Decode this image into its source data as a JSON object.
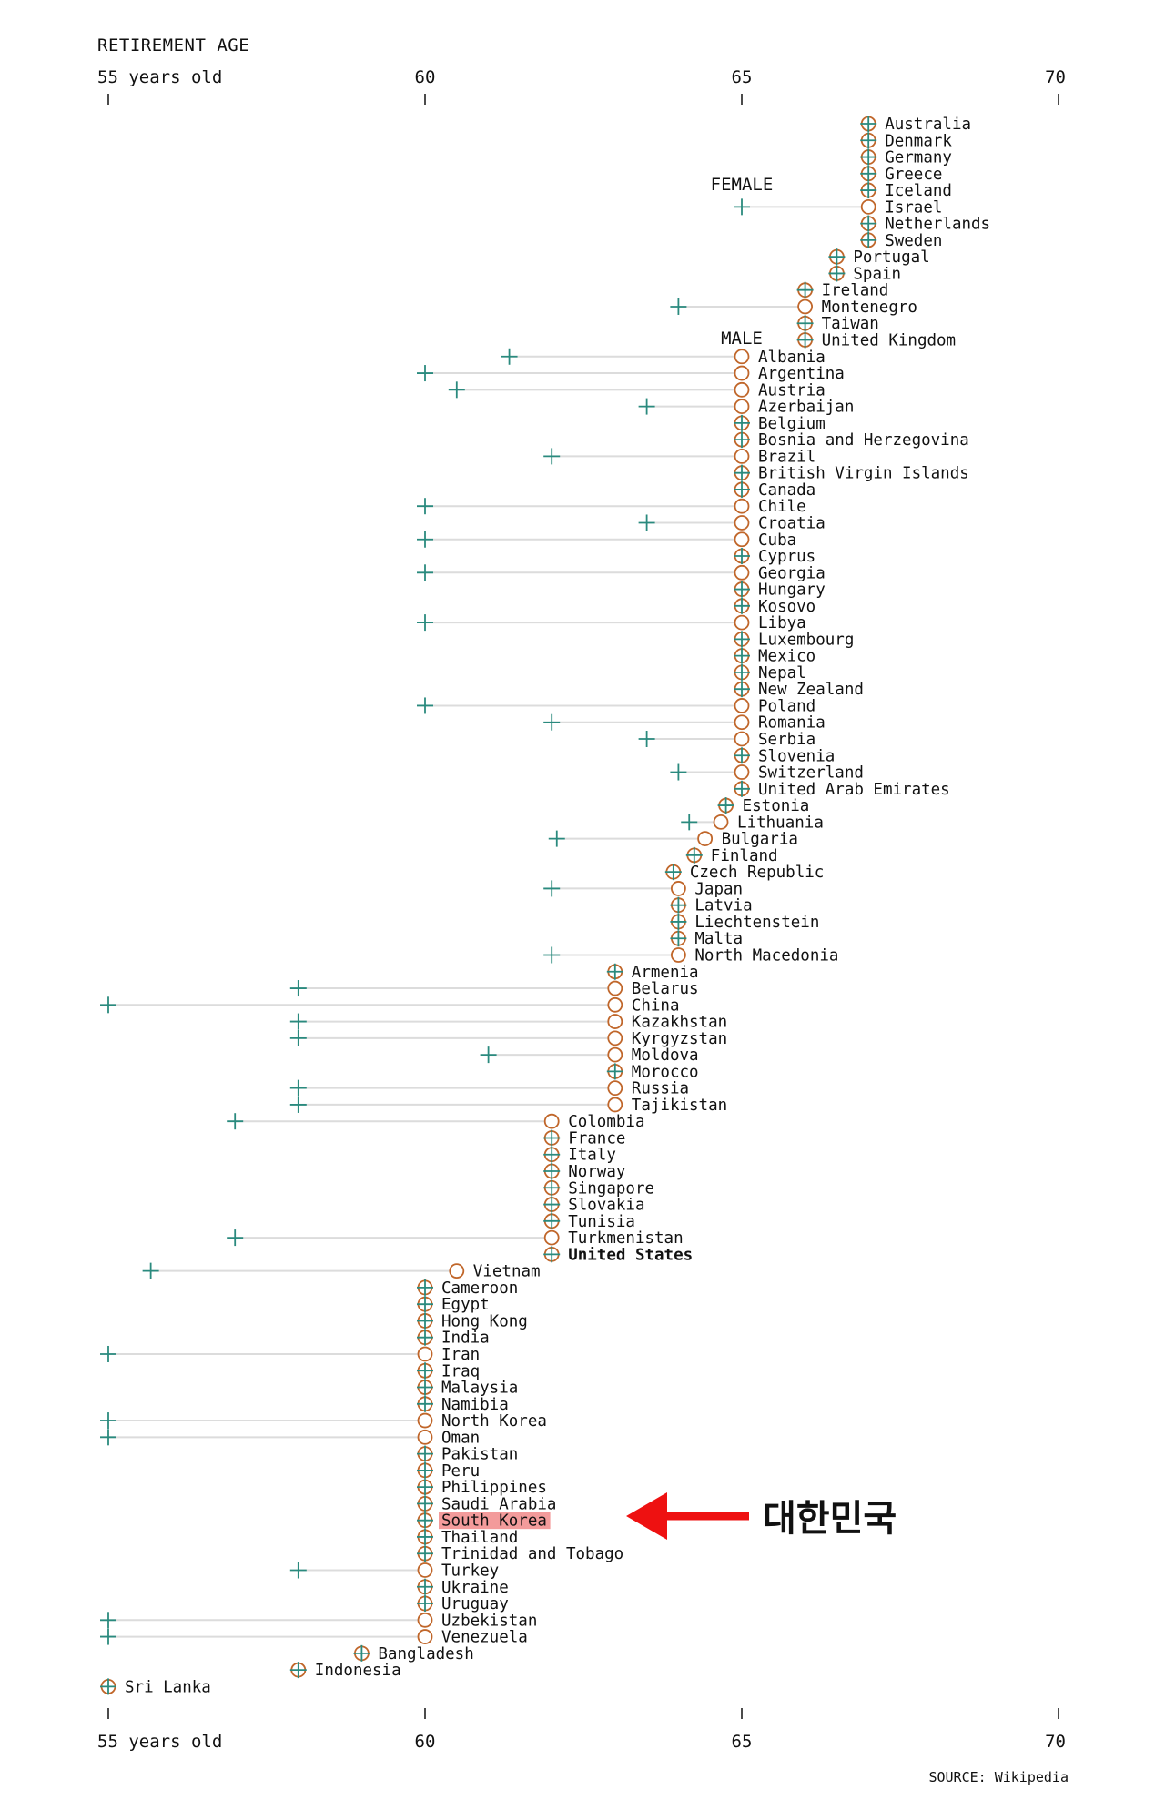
{
  "chart_data": {
    "type": "dot",
    "title": "RETIREMENT AGE",
    "axis": {
      "range": [
        55,
        70
      ],
      "ticks": [
        55,
        60,
        65,
        70
      ],
      "tick_labels": [
        "55 years old",
        "60",
        "65",
        "70"
      ]
    },
    "legend": {
      "female": "FEMALE",
      "male": "MALE"
    },
    "colors": {
      "female": "#2a8a7e",
      "male": "#c0662a",
      "connector": "#dcdcdc",
      "highlight": "#f39b9b",
      "arrow": "#ee1111"
    },
    "source": "SOURCE: Wikipedia",
    "annotation": {
      "text": "대한민국",
      "target": "South Korea"
    },
    "countries": [
      {
        "name": "Australia",
        "male": 67,
        "female": 67
      },
      {
        "name": "Denmark",
        "male": 67,
        "female": 67
      },
      {
        "name": "Germany",
        "male": 67,
        "female": 67
      },
      {
        "name": "Greece",
        "male": 67,
        "female": 67
      },
      {
        "name": "Iceland",
        "male": 67,
        "female": 67
      },
      {
        "name": "Israel",
        "male": 67,
        "female": 65
      },
      {
        "name": "Netherlands",
        "male": 67,
        "female": 67
      },
      {
        "name": "Sweden",
        "male": 67,
        "female": 67
      },
      {
        "name": "Portugal",
        "male": 66.5,
        "female": 66.5
      },
      {
        "name": "Spain",
        "male": 66.5,
        "female": 66.5
      },
      {
        "name": "Ireland",
        "male": 66,
        "female": 66
      },
      {
        "name": "Montenegro",
        "male": 66,
        "female": 64
      },
      {
        "name": "Taiwan",
        "male": 66,
        "female": 66
      },
      {
        "name": "United Kingdom",
        "male": 66,
        "female": 66
      },
      {
        "name": "Albania",
        "male": 65,
        "female": 61.33
      },
      {
        "name": "Argentina",
        "male": 65,
        "female": 60
      },
      {
        "name": "Austria",
        "male": 65,
        "female": 60.5
      },
      {
        "name": "Azerbaijan",
        "male": 65,
        "female": 63.5
      },
      {
        "name": "Belgium",
        "male": 65,
        "female": 65
      },
      {
        "name": "Bosnia and Herzegovina",
        "male": 65,
        "female": 65
      },
      {
        "name": "Brazil",
        "male": 65,
        "female": 62
      },
      {
        "name": "British Virgin Islands",
        "male": 65,
        "female": 65
      },
      {
        "name": "Canada",
        "male": 65,
        "female": 65
      },
      {
        "name": "Chile",
        "male": 65,
        "female": 60
      },
      {
        "name": "Croatia",
        "male": 65,
        "female": 63.5
      },
      {
        "name": "Cuba",
        "male": 65,
        "female": 60
      },
      {
        "name": "Cyprus",
        "male": 65,
        "female": 65
      },
      {
        "name": "Georgia",
        "male": 65,
        "female": 60
      },
      {
        "name": "Hungary",
        "male": 65,
        "female": 65
      },
      {
        "name": "Kosovo",
        "male": 65,
        "female": 65
      },
      {
        "name": "Libya",
        "male": 65,
        "female": 60
      },
      {
        "name": "Luxembourg",
        "male": 65,
        "female": 65
      },
      {
        "name": "Mexico",
        "male": 65,
        "female": 65
      },
      {
        "name": "Nepal",
        "male": 65,
        "female": 65
      },
      {
        "name": "New Zealand",
        "male": 65,
        "female": 65
      },
      {
        "name": "Poland",
        "male": 65,
        "female": 60
      },
      {
        "name": "Romania",
        "male": 65,
        "female": 62
      },
      {
        "name": "Serbia",
        "male": 65,
        "female": 63.5
      },
      {
        "name": "Slovenia",
        "male": 65,
        "female": 65
      },
      {
        "name": "Switzerland",
        "male": 65,
        "female": 64
      },
      {
        "name": "United Arab Emirates",
        "male": 65,
        "female": 65
      },
      {
        "name": "Estonia",
        "male": 64.75,
        "female": 64.75
      },
      {
        "name": "Lithuania",
        "male": 64.67,
        "female": 64.17
      },
      {
        "name": "Bulgaria",
        "male": 64.42,
        "female": 62.08
      },
      {
        "name": "Finland",
        "male": 64.25,
        "female": 64.25
      },
      {
        "name": "Czech Republic",
        "male": 63.92,
        "female": 63.92
      },
      {
        "name": "Japan",
        "male": 64,
        "female": 62
      },
      {
        "name": "Latvia",
        "male": 64,
        "female": 64
      },
      {
        "name": "Liechtenstein",
        "male": 64,
        "female": 64
      },
      {
        "name": "Malta",
        "male": 64,
        "female": 64
      },
      {
        "name": "North Macedonia",
        "male": 64,
        "female": 62
      },
      {
        "name": "Armenia",
        "male": 63,
        "female": 63
      },
      {
        "name": "Belarus",
        "male": 63,
        "female": 58
      },
      {
        "name": "China",
        "male": 63,
        "female": 55
      },
      {
        "name": "Kazakhstan",
        "male": 63,
        "female": 58
      },
      {
        "name": "Kyrgyzstan",
        "male": 63,
        "female": 58
      },
      {
        "name": "Moldova",
        "male": 63,
        "female": 61
      },
      {
        "name": "Morocco",
        "male": 63,
        "female": 63
      },
      {
        "name": "Russia",
        "male": 63,
        "female": 58
      },
      {
        "name": "Tajikistan",
        "male": 63,
        "female": 58
      },
      {
        "name": "Colombia",
        "male": 62,
        "female": 57
      },
      {
        "name": "France",
        "male": 62,
        "female": 62
      },
      {
        "name": "Italy",
        "male": 62,
        "female": 62
      },
      {
        "name": "Norway",
        "male": 62,
        "female": 62
      },
      {
        "name": "Singapore",
        "male": 62,
        "female": 62
      },
      {
        "name": "Slovakia",
        "male": 62,
        "female": 62
      },
      {
        "name": "Tunisia",
        "male": 62,
        "female": 62
      },
      {
        "name": "Turkmenistan",
        "male": 62,
        "female": 57
      },
      {
        "name": "United States",
        "male": 62,
        "female": 62,
        "bold": true
      },
      {
        "name": "Vietnam",
        "male": 60.5,
        "female": 55.67
      },
      {
        "name": "Cameroon",
        "male": 60,
        "female": 60
      },
      {
        "name": "Egypt",
        "male": 60,
        "female": 60
      },
      {
        "name": "Hong Kong",
        "male": 60,
        "female": 60
      },
      {
        "name": "India",
        "male": 60,
        "female": 60
      },
      {
        "name": "Iran",
        "male": 60,
        "female": 55
      },
      {
        "name": "Iraq",
        "male": 60,
        "female": 60
      },
      {
        "name": "Malaysia",
        "male": 60,
        "female": 60
      },
      {
        "name": "Namibia",
        "male": 60,
        "female": 60
      },
      {
        "name": "North Korea",
        "male": 60,
        "female": 55
      },
      {
        "name": "Oman",
        "male": 60,
        "female": 55
      },
      {
        "name": "Pakistan",
        "male": 60,
        "female": 60
      },
      {
        "name": "Peru",
        "male": 60,
        "female": 60
      },
      {
        "name": "Philippines",
        "male": 60,
        "female": 60
      },
      {
        "name": "Saudi Arabia",
        "male": 60,
        "female": 60
      },
      {
        "name": "South Korea",
        "male": 60,
        "female": 60,
        "highlight": true
      },
      {
        "name": "Thailand",
        "male": 60,
        "female": 60
      },
      {
        "name": "Trinidad and Tobago",
        "male": 60,
        "female": 60
      },
      {
        "name": "Turkey",
        "male": 60,
        "female": 58
      },
      {
        "name": "Ukraine",
        "male": 60,
        "female": 60
      },
      {
        "name": "Uruguay",
        "male": 60,
        "female": 60
      },
      {
        "name": "Uzbekistan",
        "male": 60,
        "female": 55
      },
      {
        "name": "Venezuela",
        "male": 60,
        "female": 55
      },
      {
        "name": "Bangladesh",
        "male": 59,
        "female": 59
      },
      {
        "name": "Indonesia",
        "male": 58,
        "female": 58
      },
      {
        "name": "Sri Lanka",
        "male": 55,
        "female": 55
      }
    ]
  }
}
